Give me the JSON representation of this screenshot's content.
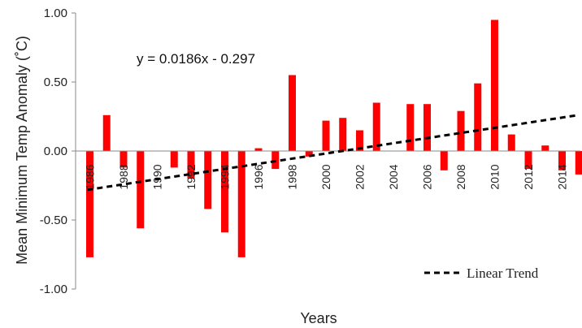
{
  "chart_data": {
    "type": "bar",
    "title": "",
    "xlabel": "Years",
    "ylabel": "Mean Minimum Temp Anomaly (˚C)",
    "ylim": [
      -1.0,
      1.0
    ],
    "y_ticks": [
      "1.00",
      "0.50",
      "0.00",
      "-0.50",
      "-1.00"
    ],
    "y_tick_values": [
      1.0,
      0.5,
      0.0,
      -0.5,
      -1.0
    ],
    "x_tick_labels": [
      "1986",
      "1988",
      "1990",
      "1992",
      "1994",
      "1996",
      "1998",
      "2000",
      "2002",
      "2004",
      "2006",
      "2008",
      "2010",
      "2012",
      "2014"
    ],
    "categories": [
      1986,
      1987,
      1988,
      1989,
      1990,
      1991,
      1992,
      1993,
      1994,
      1995,
      1996,
      1997,
      1998,
      1999,
      2000,
      2001,
      2002,
      2003,
      2004,
      2005,
      2006,
      2007,
      2008,
      2009,
      2010,
      2011,
      2012,
      2013,
      2014,
      2015
    ],
    "values": [
      -0.77,
      0.26,
      -0.12,
      -0.56,
      0.0,
      -0.12,
      -0.2,
      -0.42,
      -0.59,
      -0.77,
      0.02,
      -0.13,
      0.55,
      -0.04,
      0.22,
      0.24,
      0.15,
      0.35,
      0.0,
      0.34,
      0.34,
      -0.14,
      0.29,
      0.49,
      0.95,
      0.12,
      -0.13,
      0.04,
      -0.14,
      -0.17
    ],
    "bar_color": "#ff0000",
    "trend": {
      "equation": "y = 0.0186x - 0.297",
      "slope": 0.0186,
      "intercept": -0.297,
      "legend_label": "Linear Trend",
      "legend_position": "bottom-right",
      "color": "#000000"
    },
    "grid": false
  }
}
